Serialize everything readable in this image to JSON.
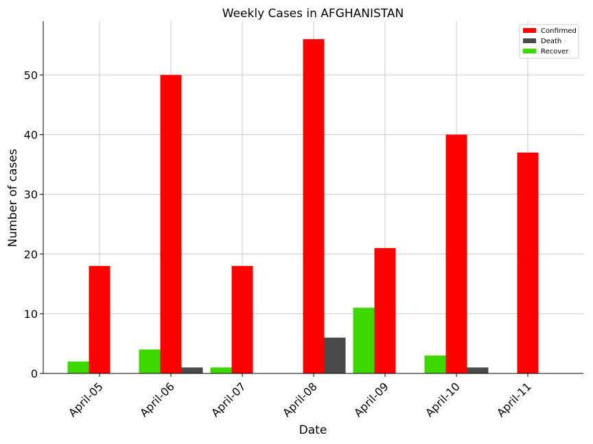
{
  "chart_data": {
    "type": "bar",
    "title": "Weekly Cases in AFGHANISTAN",
    "xlabel": "Date",
    "ylabel": "Number of cases",
    "categories": [
      "April-05",
      "April-06",
      "April-07",
      "April-08",
      "April-09",
      "April-10",
      "April-11"
    ],
    "series": [
      {
        "name": "Confirmed",
        "color": "#ff0000",
        "values": [
          18,
          50,
          18,
          56,
          21,
          40,
          37
        ]
      },
      {
        "name": "Death",
        "color": "#4a4a4a",
        "values": [
          0,
          1,
          0,
          6,
          0,
          1,
          0
        ]
      },
      {
        "name": "Recover",
        "color": "#3dd800",
        "values": [
          2,
          4,
          1,
          0,
          11,
          3,
          0
        ]
      }
    ],
    "ylim": [
      0,
      59
    ],
    "yticks": [
      0,
      10,
      20,
      30,
      40,
      50
    ],
    "grid": true,
    "legend_position": "top-right"
  }
}
